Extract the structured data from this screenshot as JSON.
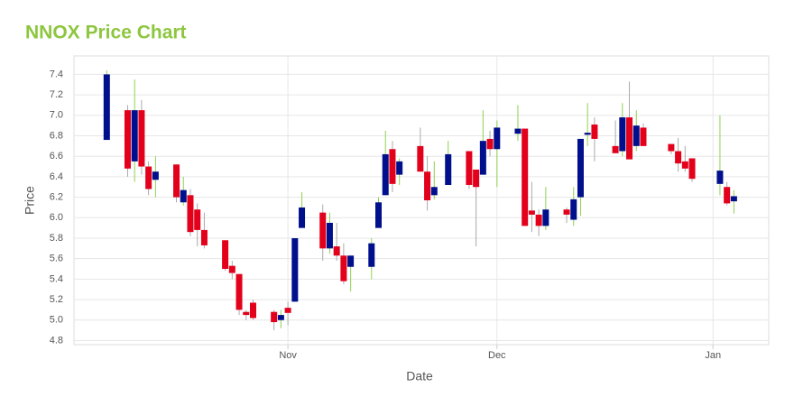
{
  "chart_data": {
    "type": "candlestick",
    "title": "NNOX Price Chart",
    "x_label": "Date",
    "y_label": "Price",
    "up_color": "#000f8c",
    "down_color": "#e3001b",
    "wick_up_color": "#8fd14f",
    "wick_down_color": "#aaaaaa",
    "grid": true,
    "xlim": [
      -30.7,
      69
    ],
    "xticks": [
      {
        "value": 0,
        "label": "Nov"
      },
      {
        "value": 30,
        "label": "Dec"
      },
      {
        "value": 61,
        "label": "Jan"
      }
    ],
    "ylim": [
      4.76,
      7.58
    ],
    "yticks": [
      4.8,
      {
        "value": 5,
        "label": "5.0"
      },
      5.2,
      5.4,
      5.6,
      5.8,
      {
        "value": 6,
        "label": "6.0"
      },
      6.2,
      6.4,
      6.6,
      6.8,
      {
        "value": 7,
        "label": "7.0"
      },
      7.2,
      7.4
    ],
    "x": [
      -26,
      -23,
      -22,
      -21,
      -20,
      -19,
      -16,
      -15,
      -14,
      -13,
      -12,
      -9,
      -8,
      -7,
      -6,
      -5,
      -2,
      -1,
      0,
      1,
      2,
      5,
      6,
      7,
      8,
      9,
      12,
      13,
      14,
      15,
      16,
      19,
      20,
      21,
      23,
      26,
      27,
      28,
      29,
      30,
      33,
      34,
      35,
      36,
      37,
      40,
      41,
      42,
      43,
      44,
      47,
      48,
      49,
      50,
      51,
      55,
      56,
      57,
      58,
      62,
      63,
      64
    ],
    "open": [
      6.76,
      7.05,
      6.55,
      7.05,
      6.5,
      6.37,
      6.52,
      6.15,
      6.22,
      6.08,
      5.88,
      5.78,
      5.53,
      5.45,
      5.08,
      5.17,
      5.08,
      5.0,
      5.12,
      5.18,
      5.9,
      6.05,
      5.7,
      5.72,
      5.63,
      5.52,
      5.52,
      5.9,
      6.22,
      6.67,
      6.42,
      6.7,
      6.45,
      6.22,
      6.32,
      6.65,
      6.47,
      6.42,
      6.77,
      6.67,
      6.82,
      6.87,
      6.07,
      6.03,
      5.92,
      6.08,
      5.98,
      6.2,
      6.81,
      6.91,
      6.7,
      6.65,
      6.98,
      6.7,
      6.88,
      6.72,
      6.65,
      6.55,
      6.58,
      6.33,
      6.3,
      6.16
    ],
    "high": [
      7.44,
      7.1,
      7.35,
      7.15,
      6.55,
      6.6,
      6.52,
      6.4,
      6.28,
      6.14,
      6.05,
      5.78,
      5.58,
      5.45,
      5.1,
      5.2,
      5.1,
      5.1,
      5.18,
      5.8,
      6.25,
      6.13,
      6.05,
      5.95,
      5.75,
      5.63,
      5.8,
      6.2,
      6.85,
      6.75,
      6.58,
      6.88,
      6.6,
      6.55,
      6.75,
      6.65,
      6.47,
      7.05,
      6.85,
      6.95,
      7.1,
      6.87,
      6.35,
      6.08,
      6.3,
      6.1,
      6.3,
      6.77,
      7.12,
      6.98,
      6.95,
      7.12,
      7.33,
      7.05,
      6.92,
      6.72,
      6.78,
      6.7,
      6.58,
      7.0,
      6.35,
      6.27
    ],
    "low": [
      6.76,
      6.4,
      6.35,
      6.42,
      6.22,
      6.2,
      6.15,
      6.12,
      5.82,
      5.72,
      5.7,
      5.48,
      5.4,
      5.05,
      5.0,
      5.0,
      4.9,
      4.92,
      4.95,
      5.18,
      5.9,
      5.58,
      5.65,
      5.58,
      5.35,
      5.28,
      5.4,
      5.9,
      6.22,
      6.25,
      6.32,
      6.45,
      6.07,
      6.18,
      6.32,
      6.28,
      5.72,
      6.42,
      6.6,
      6.3,
      6.75,
      5.92,
      5.86,
      5.82,
      5.88,
      5.95,
      5.92,
      6.02,
      6.7,
      6.55,
      6.63,
      6.6,
      6.57,
      6.65,
      6.7,
      6.62,
      6.45,
      6.45,
      6.35,
      6.22,
      6.12,
      6.04
    ],
    "close": [
      7.4,
      6.48,
      7.05,
      6.5,
      6.28,
      6.45,
      6.2,
      6.27,
      5.86,
      5.88,
      5.73,
      5.5,
      5.46,
      5.1,
      5.05,
      5.02,
      4.98,
      5.05,
      5.07,
      5.8,
      6.1,
      5.7,
      5.95,
      5.63,
      5.38,
      5.63,
      5.75,
      6.15,
      6.62,
      6.33,
      6.55,
      6.45,
      6.17,
      6.3,
      6.62,
      6.32,
      6.3,
      6.75,
      6.67,
      6.88,
      6.87,
      5.92,
      6.03,
      5.92,
      6.08,
      6.03,
      6.18,
      6.77,
      6.83,
      6.77,
      6.63,
      6.98,
      6.57,
      6.9,
      6.7,
      6.65,
      6.53,
      6.48,
      6.38,
      6.46,
      6.14,
      6.21
    ]
  }
}
